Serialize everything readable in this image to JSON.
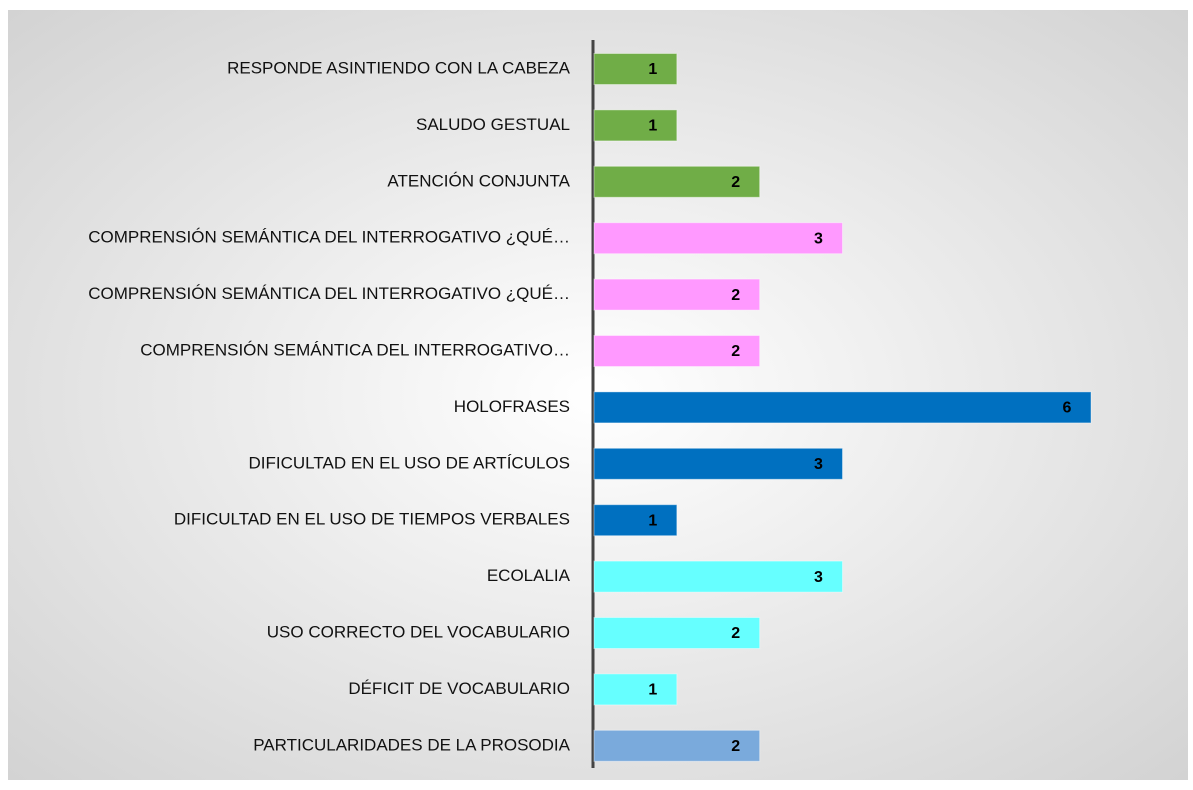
{
  "chart_data": {
    "type": "bar",
    "orientation": "horizontal",
    "categories": [
      "RESPONDE ASINTIENDO CON LA CABEZA",
      "SALUDO GESTUAL",
      "ATENCIÓN CONJUNTA",
      "COMPRENSIÓN SEMÁNTICA DEL INTERROGATIVO ¿QUÉ…",
      "COMPRENSIÓN SEMÁNTICA DEL INTERROGATIVO ¿QUÉ…",
      "COMPRENSIÓN SEMÁNTICA DEL INTERROGATIVO…",
      "HOLOFRASES",
      "DIFICULTAD EN EL USO DE ARTÍCULOS",
      "DIFICULTAD EN EL USO DE TIEMPOS VERBALES",
      "ECOLALIA",
      "USO CORRECTO DEL VOCABULARIO",
      "DÉFICIT DE VOCABULARIO",
      "PARTICULARIDADES DE LA PROSODIA"
    ],
    "values": [
      1,
      1,
      2,
      3,
      2,
      2,
      6,
      3,
      1,
      3,
      2,
      1,
      2
    ],
    "colors": [
      "#70ad47",
      "#70ad47",
      "#70ad47",
      "#ff99ff",
      "#ff99ff",
      "#ff99ff",
      "#0070c0",
      "#0070c0",
      "#0070c0",
      "#66ffff",
      "#66ffff",
      "#66ffff",
      "#7aaadc"
    ],
    "data_labels": true
  }
}
